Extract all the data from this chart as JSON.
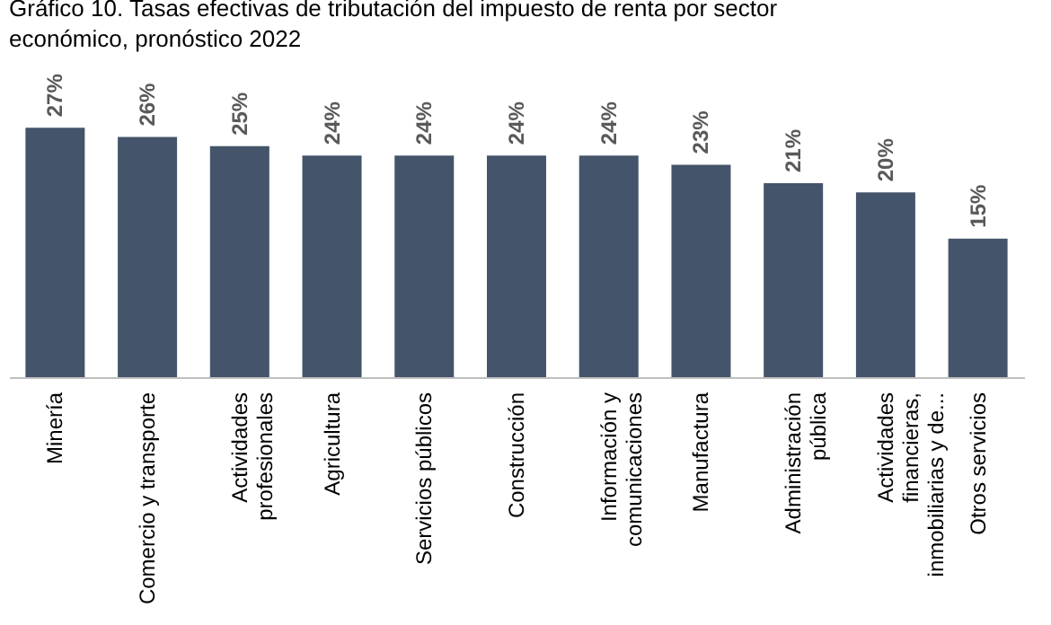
{
  "chart_data": {
    "type": "bar",
    "title": "Gráfico 10. Tasas efectivas de tributación del impuesto de renta por sector económico, pronóstico 2022",
    "categories": [
      "Minería",
      "Comercio y transporte",
      "Actividades profesionales",
      "Agricultura",
      "Servicios públicos",
      "Construcción",
      "Información y comunicaciones",
      "Manufactura",
      "Administración pública",
      "Actividades financieras, inmobiliarias y de...",
      "Otros servicios"
    ],
    "values": [
      27,
      26,
      25,
      24,
      24,
      24,
      24,
      23,
      21,
      20,
      15
    ],
    "value_labels": [
      "27%",
      "26%",
      "25%",
      "24%",
      "24%",
      "24%",
      "24%",
      "23%",
      "21%",
      "20%",
      "15%"
    ],
    "color": "#44546a",
    "grid": false,
    "tick_labels": "x"
  }
}
